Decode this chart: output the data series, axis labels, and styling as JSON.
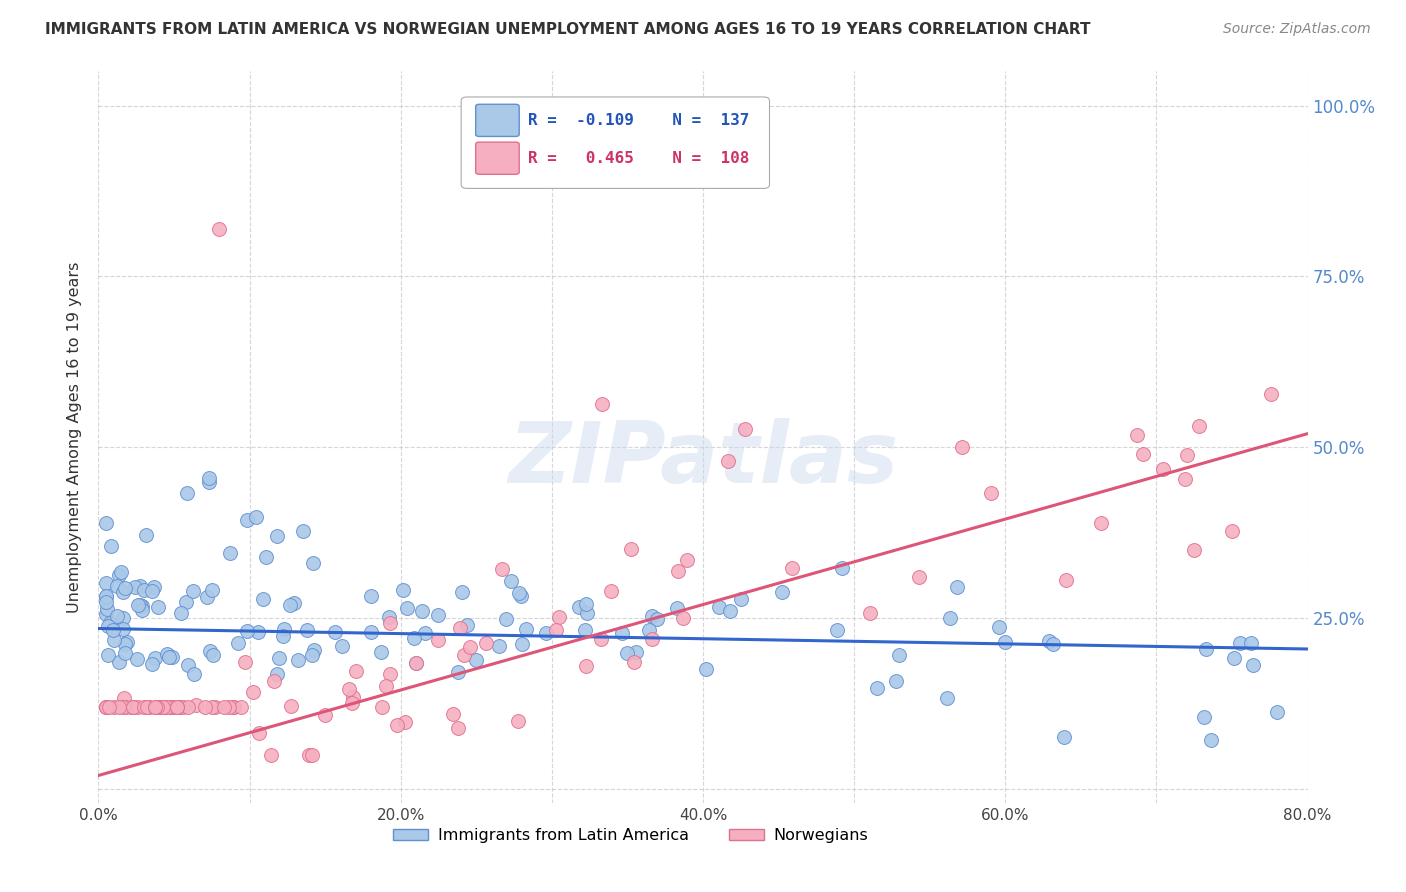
{
  "title": "IMMIGRANTS FROM LATIN AMERICA VS NORWEGIAN UNEMPLOYMENT AMONG AGES 16 TO 19 YEARS CORRELATION CHART",
  "source": "Source: ZipAtlas.com",
  "ylabel": "Unemployment Among Ages 16 to 19 years",
  "xlim": [
    0.0,
    0.8
  ],
  "ylim": [
    -0.02,
    1.05
  ],
  "xtick_labels": [
    "0.0%",
    "",
    "20.0%",
    "",
    "40.0%",
    "",
    "60.0%",
    "",
    "80.0%"
  ],
  "xtick_vals": [
    0.0,
    0.1,
    0.2,
    0.3,
    0.4,
    0.5,
    0.6,
    0.7,
    0.8
  ],
  "ytick_labels_right": [
    "100.0%",
    "75.0%",
    "50.0%",
    "25.0%"
  ],
  "ytick_vals_right": [
    1.0,
    0.75,
    0.5,
    0.25
  ],
  "ytick_vals": [
    0.0,
    0.25,
    0.5,
    0.75,
    1.0
  ],
  "blue_R": -0.109,
  "blue_N": 137,
  "pink_R": 0.465,
  "pink_N": 108,
  "blue_color": "#aac8e8",
  "pink_color": "#f5afc0",
  "blue_edge_color": "#6090d0",
  "pink_edge_color": "#e07090",
  "blue_line_color": "#3366cc",
  "pink_line_color": "#dd5577",
  "watermark": "ZIPatlas",
  "legend_label_blue": "Immigrants from Latin America",
  "legend_label_pink": "Norwegians",
  "grid_color": "#cccccc",
  "blue_line_y0": 0.235,
  "blue_line_y1": 0.205,
  "pink_line_y0": 0.02,
  "pink_line_y1": 0.52
}
